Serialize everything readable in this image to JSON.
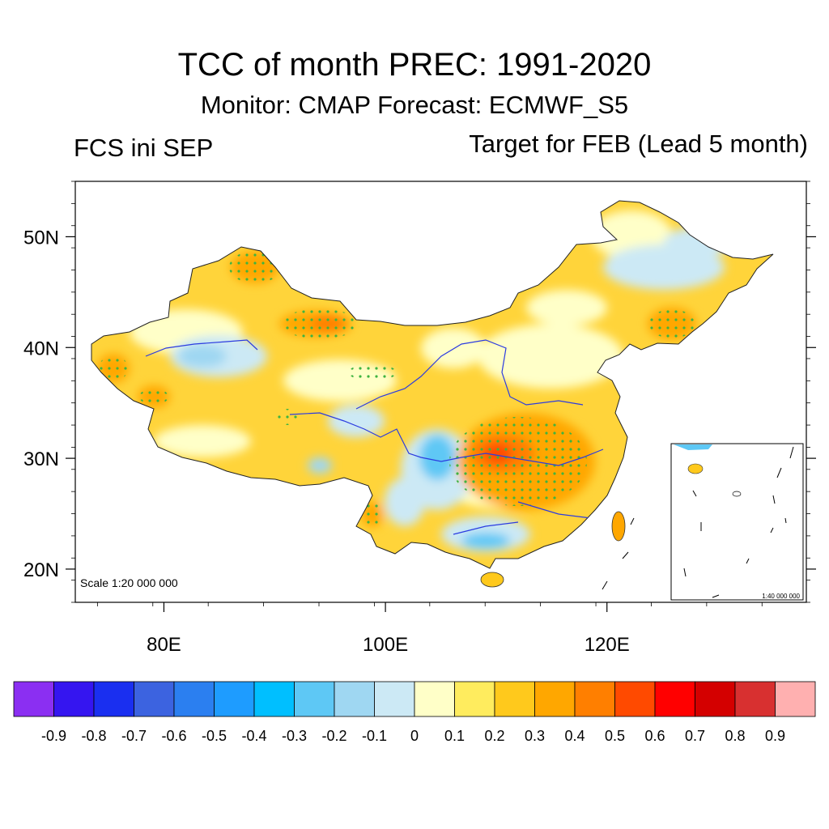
{
  "header": {
    "title": "TCC of month PREC: 1991-2020",
    "subtitle": "Monitor: CMAP   Forecast: ECMWF_S5",
    "left_label": "FCS ini SEP",
    "right_label": "Target for FEB (Lead 5 month)"
  },
  "map": {
    "scale_label": "Scale 1:20 000 000",
    "inset_scale_label": "1:40 000 000",
    "lat_ticks": [
      {
        "value": 20,
        "label": "20N"
      },
      {
        "value": 30,
        "label": "30N"
      },
      {
        "value": 40,
        "label": "40N"
      },
      {
        "value": 50,
        "label": "50N"
      }
    ],
    "lon_ticks": [
      {
        "value": 80,
        "label": "80E"
      },
      {
        "value": 100,
        "label": "100E"
      },
      {
        "value": 120,
        "label": "120E"
      }
    ],
    "lon_range": [
      72,
      138
    ],
    "lat_range": [
      17,
      55
    ]
  },
  "colorbar": {
    "colors": [
      "#8b2ff2",
      "#3515f0",
      "#1a2ff0",
      "#3c63e0",
      "#2b7ff0",
      "#1e9cff",
      "#00bfff",
      "#5ec8f5",
      "#9fd7f2",
      "#cce9f5",
      "#ffffc8",
      "#ffec5e",
      "#ffc91c",
      "#ffa700",
      "#ff7f00",
      "#ff4a00",
      "#ff0000",
      "#d40000",
      "#d83030",
      "#ffb0b0"
    ],
    "labels": [
      "-0.9",
      "-0.8",
      "-0.7",
      "-0.6",
      "-0.5",
      "-0.4",
      "-0.3",
      "-0.2",
      "-0.1",
      "0",
      "0.1",
      "0.2",
      "0.3",
      "0.4",
      "0.5",
      "0.6",
      "0.7",
      "0.8",
      "0.9"
    ]
  }
}
